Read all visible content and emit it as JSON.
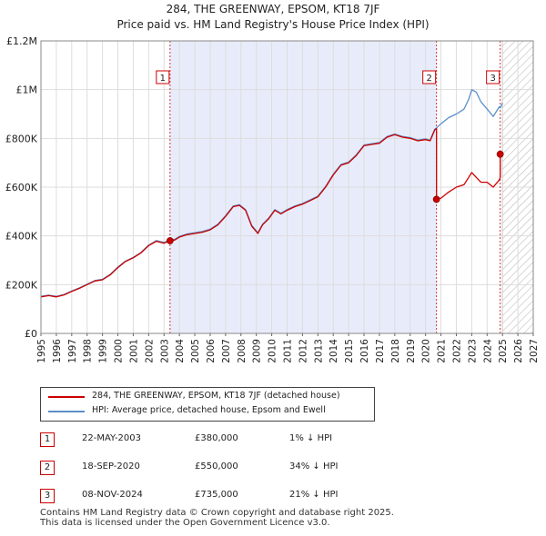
{
  "chart_data": {
    "type": "line",
    "title": "284, THE GREENWAY, EPSOM, KT18 7JF",
    "subtitle": "Price paid vs. HM Land Registry's House Price Index (HPI)",
    "xlim": [
      1995,
      2027
    ],
    "ylim": [
      0,
      1200000
    ],
    "x_ticks": [
      "1995",
      "1996",
      "1997",
      "1998",
      "1999",
      "2000",
      "2001",
      "2002",
      "2003",
      "2004",
      "2005",
      "2006",
      "2007",
      "2008",
      "2009",
      "2010",
      "2011",
      "2012",
      "2013",
      "2014",
      "2015",
      "2016",
      "2017",
      "2018",
      "2019",
      "2020",
      "2021",
      "2022",
      "2023",
      "2024",
      "2025",
      "2026",
      "2027"
    ],
    "y_ticks": [
      {
        "value": 0,
        "label": "£0"
      },
      {
        "value": 200000,
        "label": "£200K"
      },
      {
        "value": 400000,
        "label": "£400K"
      },
      {
        "value": 600000,
        "label": "£600K"
      },
      {
        "value": 800000,
        "label": "£800K"
      },
      {
        "value": 1000000,
        "label": "£1M"
      },
      {
        "value": 1200000,
        "label": "£1.2M"
      }
    ],
    "shaded_period": [
      2003.39,
      2020.71
    ],
    "future_hatch_from": 2025.0,
    "series": [
      {
        "name": "284, THE GREENWAY, EPSOM, KT18 7JF (detached house)",
        "color": "#cc0000",
        "x": [
          1995.0,
          1995.5,
          1996.0,
          1996.5,
          1997.0,
          1997.5,
          1998.0,
          1998.5,
          1999.0,
          1999.5,
          2000.0,
          2000.5,
          2001.0,
          2001.5,
          2002.0,
          2002.5,
          2003.0,
          2003.39,
          2003.39,
          2003.7,
          2004.0,
          2004.5,
          2005.0,
          2005.5,
          2006.0,
          2006.5,
          2007.0,
          2007.5,
          2007.9,
          2008.3,
          2008.7,
          2009.1,
          2009.4,
          2009.8,
          2010.2,
          2010.6,
          2011.0,
          2011.5,
          2012.0,
          2012.5,
          2013.0,
          2013.5,
          2014.0,
          2014.5,
          2015.0,
          2015.5,
          2016.0,
          2016.5,
          2017.0,
          2017.5,
          2018.0,
          2018.5,
          2019.0,
          2019.5,
          2020.0,
          2020.3,
          2020.6,
          2020.71,
          2020.71,
          2021.0,
          2021.5,
          2022.0,
          2022.5,
          2022.8,
          2023.0,
          2023.3,
          2023.6,
          2024.0,
          2024.4,
          2024.8,
          2024.85,
          2024.85,
          2025.0
        ],
        "y": [
          150000,
          155000,
          150000,
          158000,
          172000,
          185000,
          200000,
          215000,
          220000,
          240000,
          270000,
          295000,
          310000,
          330000,
          360000,
          378000,
          370000,
          380000,
          380000,
          383000,
          395000,
          405000,
          410000,
          415000,
          425000,
          445000,
          480000,
          520000,
          525000,
          505000,
          440000,
          410000,
          445000,
          470000,
          505000,
          490000,
          505000,
          520000,
          530000,
          545000,
          560000,
          600000,
          650000,
          690000,
          700000,
          730000,
          770000,
          775000,
          780000,
          805000,
          815000,
          805000,
          800000,
          790000,
          795000,
          790000,
          835000,
          840000,
          550000,
          555000,
          580000,
          600000,
          610000,
          640000,
          660000,
          640000,
          620000,
          620000,
          600000,
          630000,
          640000,
          735000,
          745000
        ]
      },
      {
        "name": "HPI: Average price, detached house, Epsom and Ewell",
        "color": "#5b8fc9",
        "x": [
          1995.0,
          1995.5,
          1996.0,
          1996.5,
          1997.0,
          1997.5,
          1998.0,
          1998.5,
          1999.0,
          1999.5,
          2000.0,
          2000.5,
          2001.0,
          2001.5,
          2002.0,
          2002.5,
          2003.0,
          2003.39,
          2003.7,
          2004.0,
          2004.5,
          2005.0,
          2005.5,
          2006.0,
          2006.5,
          2007.0,
          2007.5,
          2007.9,
          2008.3,
          2008.7,
          2009.1,
          2009.4,
          2009.8,
          2010.2,
          2010.6,
          2011.0,
          2011.5,
          2012.0,
          2012.5,
          2013.0,
          2013.5,
          2014.0,
          2014.5,
          2015.0,
          2015.5,
          2016.0,
          2016.5,
          2017.0,
          2017.5,
          2018.0,
          2018.5,
          2019.0,
          2019.5,
          2020.0,
          2020.3,
          2020.6,
          2020.71,
          2021.0,
          2021.5,
          2022.0,
          2022.5,
          2022.8,
          2023.0,
          2023.3,
          2023.6,
          2024.0,
          2024.4,
          2024.8,
          2024.85,
          2025.0
        ],
        "y": [
          152000,
          157000,
          152000,
          160000,
          174000,
          187000,
          202000,
          217000,
          222000,
          242000,
          272000,
          297000,
          312000,
          332000,
          362000,
          381000,
          373000,
          384000,
          386000,
          398000,
          408000,
          413000,
          418000,
          428000,
          448000,
          483000,
          523000,
          528000,
          508000,
          443000,
          413000,
          448000,
          473000,
          508000,
          493000,
          508000,
          523000,
          533000,
          548000,
          563000,
          603000,
          653000,
          693000,
          703000,
          733000,
          773000,
          778000,
          783000,
          808000,
          818000,
          808000,
          803000,
          793000,
          798000,
          793000,
          838000,
          843000,
          860000,
          885000,
          900000,
          920000,
          960000,
          1000000,
          990000,
          950000,
          920000,
          890000,
          930000,
          925000,
          945000
        ]
      }
    ],
    "sales": [
      {
        "label": "1",
        "x": 2003.39,
        "value": 380000
      },
      {
        "label": "2",
        "x": 2020.71,
        "value": 550000
      },
      {
        "label": "3",
        "x": 2024.85,
        "value": 735000
      }
    ]
  },
  "legend": {
    "property_label": "284, THE GREENWAY, EPSOM, KT18 7JF (detached house)",
    "hpi_label": "HPI: Average price, detached house, Epsom and Ewell",
    "property_color": "#cc0000",
    "hpi_color": "#5b8fc9"
  },
  "transactions": [
    {
      "num": "1",
      "date": "22-MAY-2003",
      "price": "£380,000",
      "hpi": "1% ↓ HPI"
    },
    {
      "num": "2",
      "date": "18-SEP-2020",
      "price": "£550,000",
      "hpi": "34% ↓ HPI"
    },
    {
      "num": "3",
      "date": "08-NOV-2024",
      "price": "£735,000",
      "hpi": "21% ↓ HPI"
    }
  ],
  "footer": {
    "line1": "Contains HM Land Registry data © Crown copyright and database right 2025.",
    "line2": "This data is licensed under the Open Government Licence v3.0."
  }
}
